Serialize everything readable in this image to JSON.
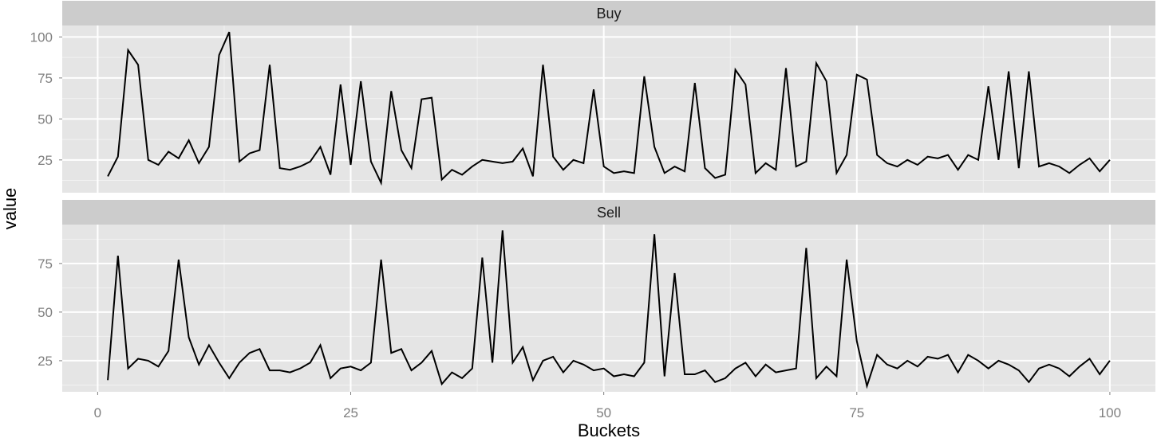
{
  "chart_data": {
    "type": "line",
    "facet": "rows",
    "xlabel": "Buckets",
    "ylabel": "value",
    "xlim": [
      -3.5,
      104.5
    ],
    "x_ticks": [
      0,
      25,
      50,
      75,
      100
    ],
    "grid": true,
    "legend": "none",
    "line_color": "#000000",
    "panel_color": "#e5e5e5",
    "strip_color": "#cccccc",
    "x": [
      1,
      2,
      3,
      4,
      5,
      6,
      7,
      8,
      9,
      10,
      11,
      12,
      13,
      14,
      15,
      16,
      17,
      18,
      19,
      20,
      21,
      22,
      23,
      24,
      25,
      26,
      27,
      28,
      29,
      30,
      31,
      32,
      33,
      34,
      35,
      36,
      37,
      38,
      39,
      40,
      41,
      42,
      43,
      44,
      45,
      46,
      47,
      48,
      49,
      50,
      51,
      52,
      53,
      54,
      55,
      56,
      57,
      58,
      59,
      60,
      61,
      62,
      63,
      64,
      65,
      66,
      67,
      68,
      69,
      70,
      71,
      72,
      73,
      74,
      75,
      76,
      77,
      78,
      79,
      80,
      81,
      82,
      83,
      84,
      85,
      86,
      87,
      88,
      89,
      90,
      91,
      92,
      93,
      94,
      95,
      96,
      97,
      98,
      99,
      100
    ],
    "panels": [
      {
        "name": "Buy",
        "ylim": [
          5,
          107
        ],
        "y_ticks": [
          25,
          50,
          75,
          100
        ],
        "values": [
          15,
          27,
          92,
          83,
          25,
          22,
          30,
          26,
          37,
          23,
          33,
          89,
          103,
          24,
          29,
          31,
          83,
          20,
          19,
          21,
          24,
          33,
          16,
          71,
          22,
          73,
          24,
          11,
          67,
          31,
          20,
          62,
          63,
          13,
          19,
          16,
          21,
          25,
          24,
          23,
          24,
          32,
          15,
          83,
          27,
          19,
          25,
          23,
          68,
          21,
          17,
          18,
          17,
          76,
          33,
          17,
          21,
          18,
          72,
          20,
          14,
          16,
          80,
          71,
          17,
          23,
          19,
          81,
          21,
          24,
          84,
          73,
          17,
          28,
          77,
          74,
          28,
          23,
          21,
          25,
          22,
          27,
          26,
          28,
          19,
          28,
          25,
          70,
          25,
          79,
          20,
          79,
          21,
          23,
          21,
          17,
          22,
          26,
          18,
          25
        ]
      },
      {
        "name": "Sell",
        "ylim": [
          9,
          95
        ],
        "y_ticks": [
          25,
          50,
          75
        ],
        "values": [
          15,
          79,
          21,
          26,
          25,
          22,
          30,
          77,
          37,
          23,
          33,
          24,
          16,
          24,
          29,
          31,
          20,
          20,
          19,
          21,
          24,
          33,
          16,
          21,
          22,
          20,
          24,
          77,
          29,
          31,
          20,
          24,
          30,
          13,
          19,
          16,
          21,
          78,
          24,
          92,
          24,
          32,
          15,
          25,
          27,
          19,
          25,
          23,
          20,
          21,
          17,
          18,
          17,
          24,
          90,
          17,
          70,
          18,
          18,
          20,
          14,
          16,
          21,
          24,
          17,
          23,
          19,
          20,
          21,
          83,
          16,
          22,
          17,
          77,
          35,
          12,
          28,
          23,
          21,
          25,
          22,
          27,
          26,
          28,
          19,
          28,
          25,
          21,
          25,
          23,
          20,
          14,
          21,
          23,
          21,
          17,
          22,
          26,
          18,
          25
        ]
      }
    ]
  }
}
